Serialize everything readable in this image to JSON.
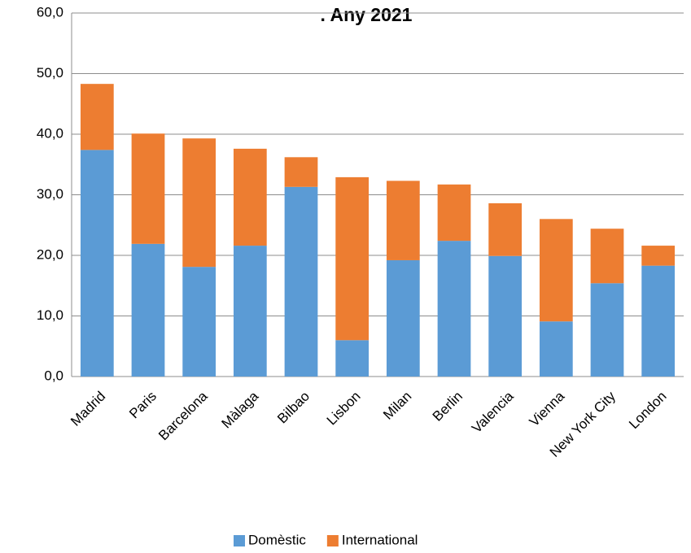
{
  "chart_data": {
    "type": "stacked-bar",
    "title": ". Any 2021",
    "categories": [
      "Madrid",
      "Paris",
      "Barcelona",
      "Màlaga",
      "Bilbao",
      "Lisbon",
      "Milan",
      "Berlin",
      "Valencia",
      "Vienna",
      "New York City",
      "London"
    ],
    "series": [
      {
        "name": "Domèstic",
        "color": "#5b9bd5",
        "values": [
          37.4,
          21.9,
          18.1,
          21.6,
          31.3,
          6.0,
          19.2,
          22.4,
          19.9,
          9.1,
          15.4,
          18.3
        ]
      },
      {
        "name": "International",
        "color": "#ed7d31",
        "values": [
          10.9,
          18.2,
          21.2,
          16.0,
          4.9,
          26.9,
          13.1,
          9.3,
          8.7,
          16.9,
          9.0,
          3.3
        ]
      }
    ],
    "ylim": [
      0,
      60
    ],
    "yticks": [
      {
        "value": 0,
        "label": "0,0"
      },
      {
        "value": 10,
        "label": "10,0"
      },
      {
        "value": 20,
        "label": "20,0"
      },
      {
        "value": 30,
        "label": "30,0"
      },
      {
        "value": 40,
        "label": "40,0"
      },
      {
        "value": 50,
        "label": "50,0"
      },
      {
        "value": 60,
        "label": "60,0"
      }
    ],
    "grid": true,
    "legend": "bottom"
  }
}
